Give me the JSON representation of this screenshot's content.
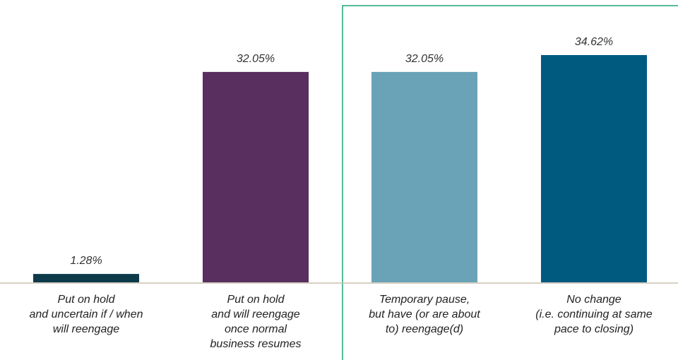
{
  "chart_data": {
    "type": "bar",
    "categories": [
      "Put on hold\nand uncertain if / when\nwill reengage",
      "Put on hold\nand will reengage\nonce normal\nbusiness resumes",
      "Temporary pause,\nbut have (or are about\nto) reengage(d)",
      "No change\n(i.e. continuing at same\npace to closing)"
    ],
    "values": [
      1.28,
      32.05,
      32.05,
      34.62
    ],
    "value_labels": [
      "1.28%",
      "32.05%",
      "32.05%",
      "34.62%"
    ],
    "colors": [
      "#0d3b4a",
      "#582f5e",
      "#6aa3b8",
      "#005a80"
    ]
  }
}
